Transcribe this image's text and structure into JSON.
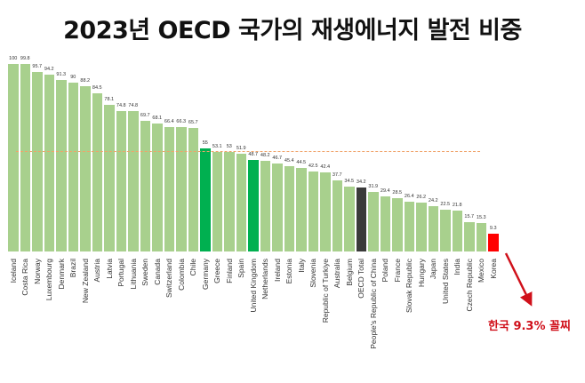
{
  "title": "2023년 OECD 국가의 재생에너지 발전 비중",
  "annotation": "한국 9.3% 꼴찌",
  "colors": {
    "default_bar": "#a8d08d",
    "highlight_green": "#00b050",
    "oecd_total": "#3a3a3a",
    "korea": "#ff0000",
    "average_line": "#f0a36a",
    "annotation": "#d0101a"
  },
  "chart_data": {
    "type": "bar",
    "title": "2023년 OECD 국가의 재생에너지 발전 비중",
    "xlabel": "",
    "ylabel": "",
    "ylim": [
      0,
      100
    ],
    "grid": false,
    "legend": null,
    "categories": [
      "Iceland",
      "Costa Rica",
      "Norway",
      "Luxembourg",
      "Denmark",
      "Brazil",
      "New Zealand",
      "Austria",
      "Latvia",
      "Portugal",
      "Lithuania",
      "Sweden",
      "Canada",
      "Switzerland",
      "Colombia",
      "Chile",
      "Germany",
      "Greece",
      "Finland",
      "Spain",
      "United Kingdom",
      "Netherlands",
      "Ireland",
      "Estonia",
      "Italy",
      "Slovenia",
      "Republic of Turkiye",
      "Australia",
      "Belgium",
      "OECD Total",
      "People's Republic of China",
      "Poland",
      "France",
      "Slovak Republic",
      "Hungary",
      "Japan",
      "United States",
      "India",
      "Czech Republic",
      "Mexico",
      "Korea"
    ],
    "values": [
      100,
      99.8,
      95.7,
      94.2,
      91.3,
      90.0,
      88.2,
      84.5,
      78.1,
      74.8,
      74.8,
      69.7,
      68.1,
      66.4,
      66.3,
      65.7,
      55.0,
      53.1,
      53.0,
      51.9,
      48.7,
      48.2,
      46.7,
      45.4,
      44.5,
      42.5,
      42.4,
      37.7,
      34.5,
      34.2,
      31.9,
      29.4,
      28.5,
      26.4,
      26.2,
      24.2,
      22.5,
      21.8,
      15.7,
      15.3,
      9.3
    ],
    "highlights": {
      "Germany": "highlight_green",
      "United Kingdom": "highlight_green",
      "OECD Total": "oecd_total",
      "Korea": "korea"
    },
    "reference_line": {
      "style": "dashed",
      "approx_value": 53.5
    },
    "annotations": [
      {
        "text": "한국 9.3% 꼴찌",
        "target": "Korea",
        "arrow": true
      }
    ]
  }
}
